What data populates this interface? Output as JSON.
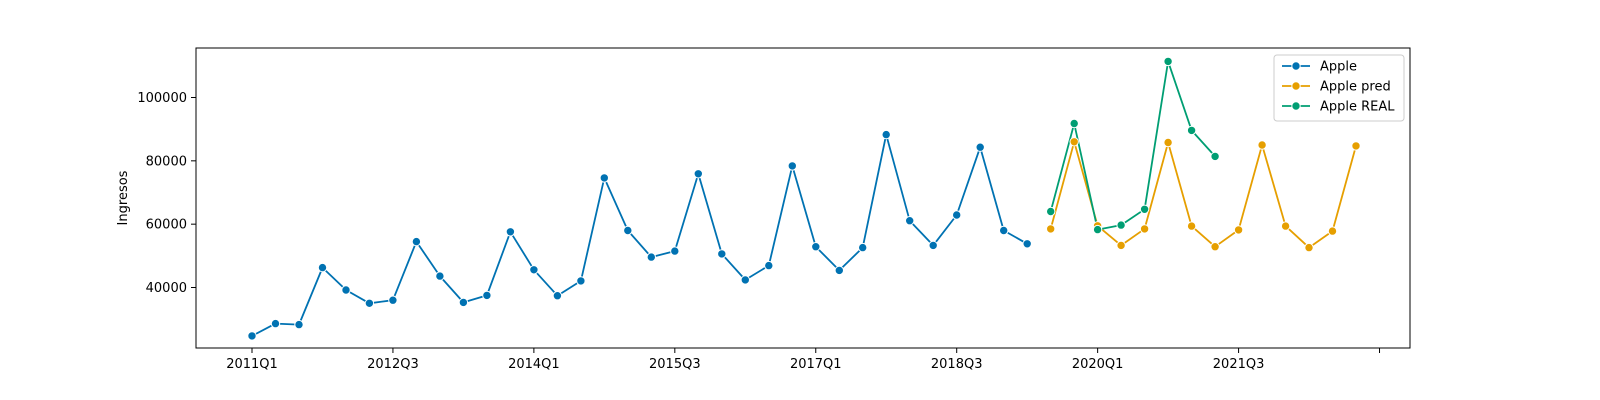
{
  "chart_data": {
    "type": "line",
    "title": "",
    "xlabel": "",
    "ylabel": "Ingresos",
    "x_tick_labels": [
      "2011Q1",
      "2012Q3",
      "2014Q1",
      "2015Q3",
      "2017Q1",
      "2018Q3",
      "2020Q1",
      "2021Q3",
      ""
    ],
    "y_ticks": [
      40000,
      60000,
      80000,
      100000
    ],
    "y_tick_labels": [
      "40000",
      "60000",
      "80000",
      "100000"
    ],
    "ylim": [
      21500,
      116000
    ],
    "grid": false,
    "legend_position": "top-right",
    "series": [
      {
        "name": "Apple",
        "color": "#0072B2",
        "x": [
          "2011Q1",
          "2011Q2",
          "2011Q3",
          "2011Q4",
          "2012Q1",
          "2012Q2",
          "2012Q3",
          "2012Q4",
          "2013Q1",
          "2013Q2",
          "2013Q3",
          "2013Q4",
          "2014Q1",
          "2014Q2",
          "2014Q3",
          "2014Q4",
          "2015Q1",
          "2015Q2",
          "2015Q3",
          "2015Q4",
          "2016Q1",
          "2016Q2",
          "2016Q3",
          "2016Q4",
          "2017Q1",
          "2017Q2",
          "2017Q3",
          "2017Q4",
          "2018Q1",
          "2018Q2",
          "2018Q3",
          "2018Q4",
          "2019Q1",
          "2019Q2"
        ],
        "values": [
          24700,
          28600,
          28300,
          46300,
          39200,
          35000,
          36000,
          54500,
          43600,
          35300,
          37500,
          57600,
          45600,
          37400,
          42100,
          74600,
          58000,
          49600,
          51500,
          75900,
          50600,
          42400,
          46900,
          78400,
          52900,
          45400,
          52600,
          88300,
          61100,
          53300,
          62900,
          84300,
          58000,
          53800
        ]
      },
      {
        "name": "Apple pred",
        "color": "#E69F00",
        "x": [
          "2019Q3",
          "2019Q4",
          "2020Q1",
          "2020Q2",
          "2020Q3",
          "2020Q4",
          "2021Q1",
          "2021Q2",
          "2021Q3",
          "2021Q4",
          "2022Q1",
          "2022Q2",
          "2022Q3",
          "2022Q4"
        ],
        "values": [
          58500,
          86000,
          59500,
          53300,
          58500,
          85800,
          59400,
          52900,
          58200,
          85000,
          59400,
          52600,
          57800,
          84700
        ]
      },
      {
        "name": "Apple REAL",
        "color": "#009E73",
        "x": [
          "2019Q3",
          "2019Q4",
          "2020Q1",
          "2020Q2",
          "2020Q3",
          "2020Q4",
          "2021Q1",
          "2021Q2"
        ],
        "values": [
          64000,
          91800,
          58300,
          59700,
          64700,
          111400,
          89600,
          81400
        ]
      }
    ]
  }
}
